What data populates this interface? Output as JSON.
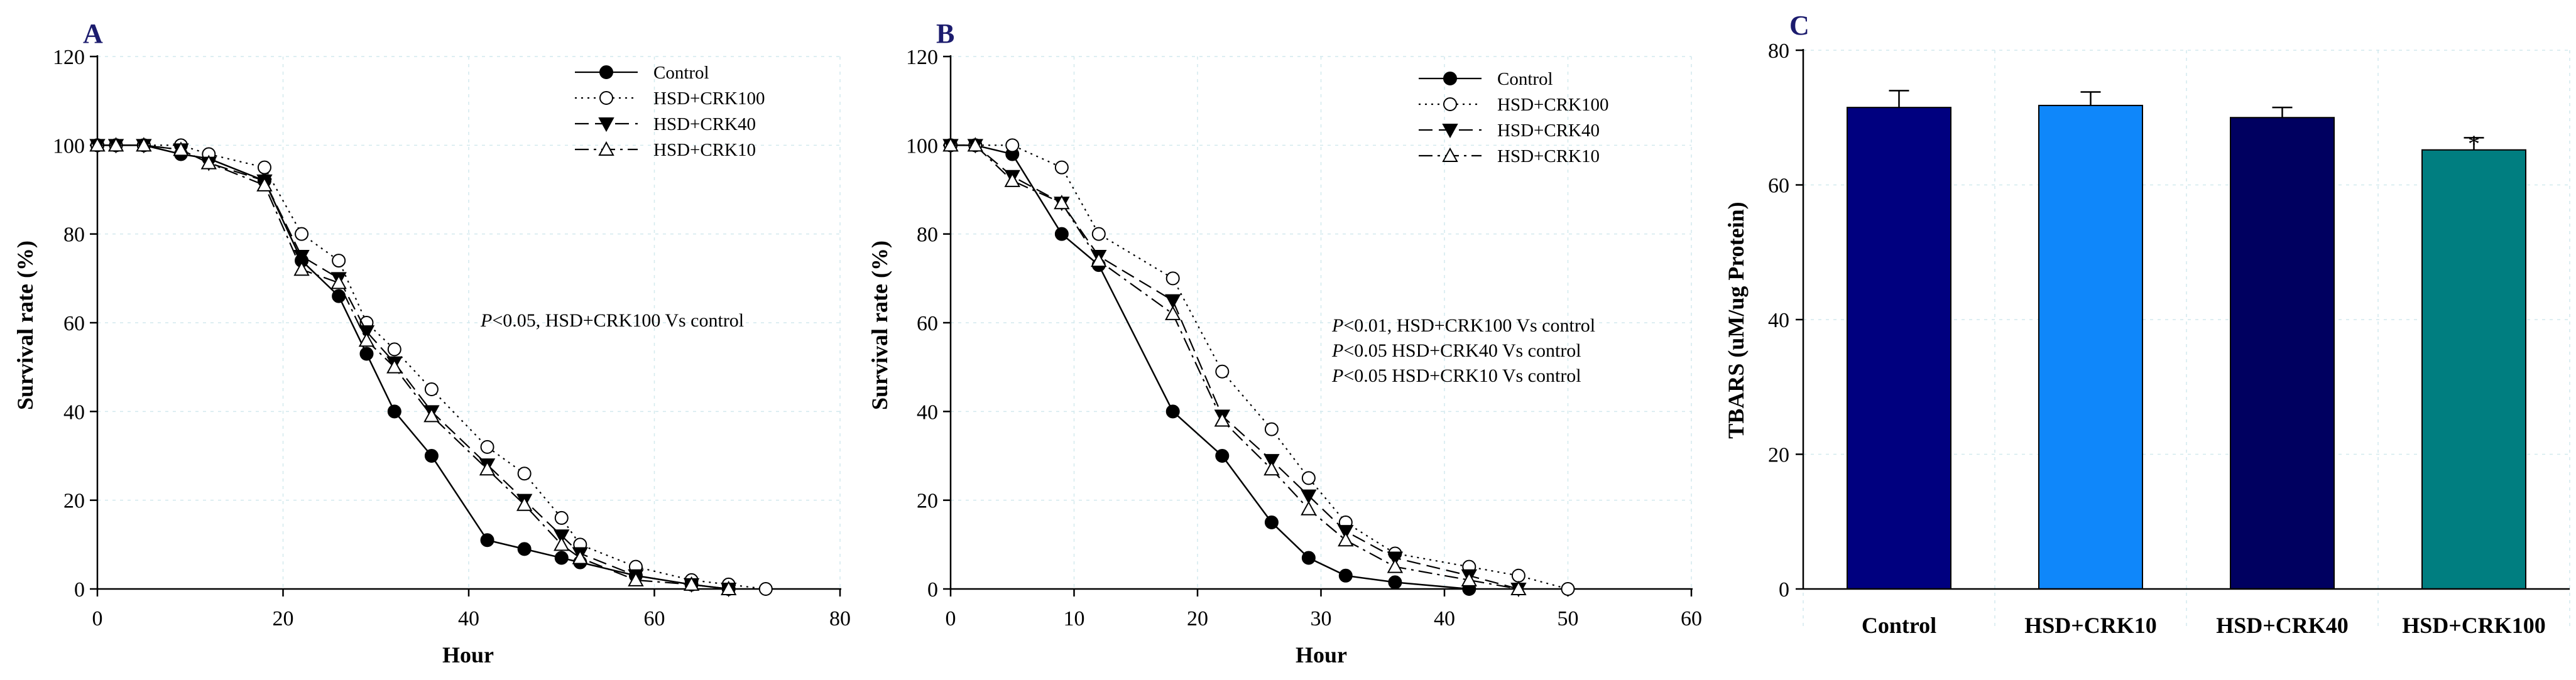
{
  "colors": {
    "axis": "#000000",
    "grid": "#d2e9ee",
    "panel_letter": "#1c1c6e"
  },
  "chart_data": [
    {
      "id": "A",
      "type": "line",
      "panel_label": "A",
      "title": "",
      "xlabel": "Hour",
      "ylabel": "Survival rate (%)",
      "xlim": [
        0,
        80
      ],
      "ylim": [
        0,
        120
      ],
      "xticks": [
        0,
        20,
        40,
        60,
        80
      ],
      "yticks": [
        0,
        20,
        40,
        60,
        80,
        100,
        120
      ],
      "grid": true,
      "legend_position": "top-right",
      "annotations": [
        {
          "italic": "P",
          "text": "<0.05, HSD+CRK100 Vs control"
        }
      ],
      "series": [
        {
          "name": "Control",
          "marker": "circle-filled",
          "line": "solid",
          "x": [
            0,
            2,
            5,
            9,
            12,
            18,
            22,
            26,
            29,
            32,
            36,
            42,
            46,
            50,
            52,
            58,
            64,
            68
          ],
          "y": [
            100,
            100,
            100,
            98,
            97,
            92,
            74,
            66,
            53,
            40,
            30,
            11,
            9,
            7,
            6,
            3,
            1,
            0
          ]
        },
        {
          "name": "HSD+CRK100",
          "marker": "circle-open",
          "line": "dotted",
          "x": [
            0,
            2,
            5,
            9,
            12,
            18,
            22,
            26,
            29,
            32,
            36,
            42,
            46,
            50,
            52,
            58,
            64,
            68,
            72
          ],
          "y": [
            100,
            100,
            100,
            100,
            98,
            95,
            80,
            74,
            60,
            54,
            45,
            32,
            26,
            16,
            10,
            5,
            2,
            1,
            0
          ]
        },
        {
          "name": "HSD+CRK40",
          "marker": "triangle-down-filled",
          "line": "dashed",
          "x": [
            0,
            2,
            5,
            9,
            12,
            18,
            22,
            26,
            29,
            32,
            36,
            42,
            46,
            50,
            52,
            58,
            64,
            68
          ],
          "y": [
            100,
            100,
            100,
            99,
            96,
            92,
            75,
            70,
            58,
            51,
            40,
            28,
            20,
            12,
            8,
            3,
            1,
            0
          ]
        },
        {
          "name": "HSD+CRK10",
          "marker": "triangle-up-open",
          "line": "dashdot",
          "x": [
            0,
            2,
            5,
            9,
            12,
            18,
            22,
            26,
            29,
            32,
            36,
            42,
            46,
            50,
            52,
            58,
            64,
            68
          ],
          "y": [
            100,
            100,
            100,
            99,
            96,
            91,
            72,
            69,
            56,
            50,
            39,
            27,
            19,
            10,
            7,
            2,
            1,
            0
          ]
        }
      ]
    },
    {
      "id": "B",
      "type": "line",
      "panel_label": "B",
      "title": "",
      "xlabel": "Hour",
      "ylabel": "Survival rate (%)",
      "xlim": [
        0,
        60
      ],
      "ylim": [
        0,
        120
      ],
      "xticks": [
        0,
        10,
        20,
        30,
        40,
        50,
        60
      ],
      "yticks": [
        0,
        20,
        40,
        60,
        80,
        100,
        120
      ],
      "grid": true,
      "legend_position": "top-right",
      "annotations": [
        {
          "italic": "P",
          "text": "<0.01, HSD+CRK100 Vs control"
        },
        {
          "italic": "P",
          "text": "<0.05 HSD+CRK40  Vs control"
        },
        {
          "italic": "P",
          "text": "<0.05 HSD+CRK10 Vs control"
        }
      ],
      "series": [
        {
          "name": "Control",
          "marker": "circle-filled",
          "line": "solid",
          "x": [
            0,
            2,
            5,
            9,
            12,
            18,
            22,
            26,
            29,
            32,
            36,
            42
          ],
          "y": [
            100,
            100,
            98,
            80,
            73,
            40,
            30,
            15,
            7,
            3,
            1.5,
            0
          ]
        },
        {
          "name": "HSD+CRK100",
          "marker": "circle-open",
          "line": "dotted",
          "x": [
            0,
            2,
            5,
            9,
            12,
            18,
            22,
            26,
            29,
            32,
            36,
            42,
            46,
            50
          ],
          "y": [
            100,
            100,
            100,
            95,
            80,
            70,
            49,
            36,
            25,
            15,
            8,
            5,
            3,
            0
          ]
        },
        {
          "name": "HSD+CRK40",
          "marker": "triangle-down-filled",
          "line": "dashed",
          "x": [
            0,
            2,
            5,
            9,
            12,
            18,
            22,
            26,
            29,
            32,
            36,
            42,
            46
          ],
          "y": [
            100,
            100,
            93,
            87,
            75,
            65,
            39,
            29,
            21,
            13,
            7,
            3,
            0
          ]
        },
        {
          "name": "HSD+CRK10",
          "marker": "triangle-up-open",
          "line": "dashdot",
          "x": [
            0,
            2,
            5,
            9,
            12,
            18,
            22,
            26,
            29,
            32,
            36,
            42,
            46
          ],
          "y": [
            100,
            100,
            92,
            87,
            74,
            62,
            38,
            27,
            18,
            11,
            5,
            2,
            0
          ]
        }
      ]
    },
    {
      "id": "C",
      "type": "bar",
      "panel_label": "C",
      "title": "",
      "xlabel": "",
      "ylabel": "TBARS (uM/ug Protein)",
      "ylim": [
        0,
        80
      ],
      "yticks": [
        0,
        20,
        40,
        60,
        80
      ],
      "grid": true,
      "categories": [
        "Control",
        "HSD+CRK10",
        "HSD+CRK40",
        "HSD+CRK100"
      ],
      "values": [
        71.5,
        71.8,
        70.0,
        65.2
      ],
      "errors": [
        2.5,
        2.0,
        1.5,
        1.8
      ],
      "bar_colors": [
        "#00007f",
        "#0f87fa",
        "#000060",
        "#007e80"
      ],
      "significance": [
        "",
        "",
        "",
        "*"
      ]
    }
  ]
}
